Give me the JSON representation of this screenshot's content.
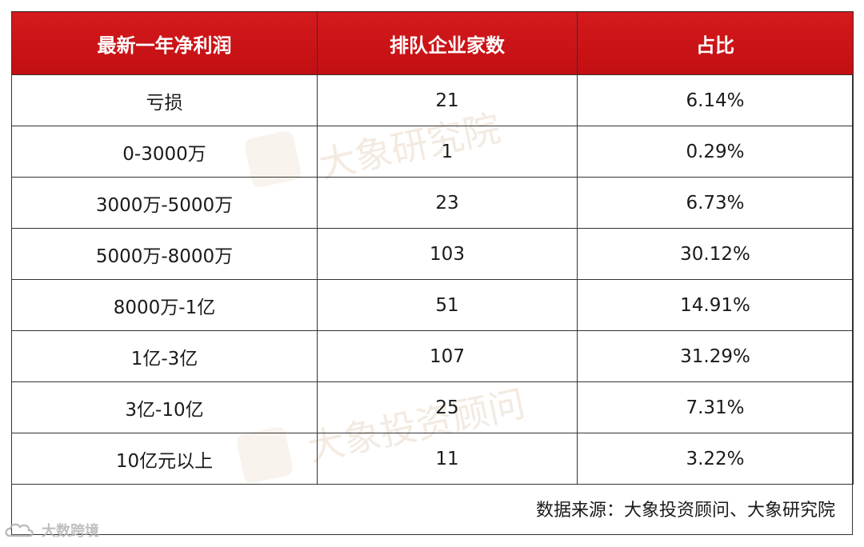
{
  "table": {
    "headers": [
      "最新一年净利润",
      "排队企业家数",
      "占比"
    ],
    "rows": [
      [
        "亏损",
        "21",
        "6.14%"
      ],
      [
        "0-3000万",
        "1",
        "0.29%"
      ],
      [
        "3000万-5000万",
        "23",
        "6.73%"
      ],
      [
        "5000万-8000万",
        "103",
        "30.12%"
      ],
      [
        "8000万-1亿",
        "51",
        "14.91%"
      ],
      [
        "1亿-3亿",
        "107",
        "31.29%"
      ],
      [
        "3亿-10亿",
        "25",
        "7.31%"
      ],
      [
        "10亿元以上",
        "11",
        "3.22%"
      ]
    ]
  },
  "source": "数据来源：大象投资顾问、大象研究院",
  "watermarks": {
    "top": "大象研究院",
    "bottom": "大象投资顾问"
  },
  "corner_logo": {
    "text": "大数跨境",
    "icon": "cloud-logo-icon"
  },
  "colors": {
    "header_bg": "#c8101a",
    "header_text": "#ffffff",
    "border": "#333333"
  }
}
